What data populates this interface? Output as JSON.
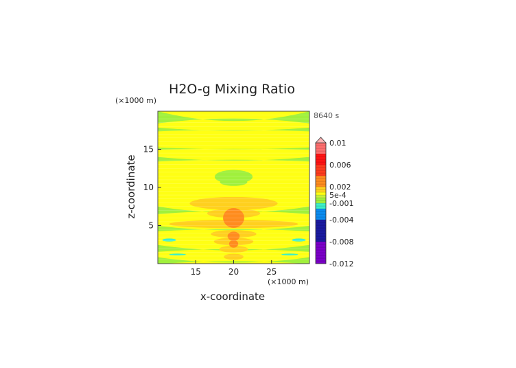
{
  "chart_data": {
    "type": "heatmap",
    "title": "H2O-g Mixing Ratio",
    "xlabel": "x-coordinate",
    "ylabel": "z-coordinate",
    "x_unit": "(×1000 m)",
    "y_unit": "(×1000 m)",
    "time_label": "8640 s",
    "xlim": [
      10,
      30
    ],
    "ylim": [
      0,
      20
    ],
    "x_ticks": [
      15,
      20,
      25
    ],
    "y_ticks": [
      5,
      10,
      15
    ],
    "colorbar": {
      "range": [
        -0.012,
        0.01
      ],
      "tick_labels": [
        "0.01",
        "0.006",
        "0.002",
        "5e-4",
        "-0.001",
        "-0.004",
        "-0.008",
        "-0.012"
      ],
      "tick_values": [
        0.01,
        0.006,
        0.002,
        0.0005,
        -0.001,
        -0.004,
        -0.008,
        -0.012
      ],
      "colors": [
        {
          "value": -0.012,
          "color": "#7b00c8"
        },
        {
          "value": -0.008,
          "color": "#1a1aa0"
        },
        {
          "value": -0.004,
          "color": "#0a8cf0"
        },
        {
          "value": -0.002,
          "color": "#3cf0c8"
        },
        {
          "value": -0.001,
          "color": "#a0f03c"
        },
        {
          "value": 0.0,
          "color": "#c8f03c"
        },
        {
          "value": 0.0005,
          "color": "#ffff14"
        },
        {
          "value": 0.001,
          "color": "#ffd01e"
        },
        {
          "value": 0.002,
          "color": "#ff8c1e"
        },
        {
          "value": 0.004,
          "color": "#ff3c1e"
        },
        {
          "value": 0.006,
          "color": "#ff1414"
        },
        {
          "value": 0.008,
          "color": "#ff6e6e"
        },
        {
          "value": 0.01,
          "color": "#ffb4b4"
        }
      ]
    },
    "background_value": 0.0006,
    "regions": [
      {
        "kind": "band",
        "z": 19.2,
        "half_height": 0.8,
        "value": -0.0008
      },
      {
        "kind": "band",
        "z": 17.6,
        "half_height": 0.25,
        "value": -0.0008
      },
      {
        "kind": "band",
        "z": 15.1,
        "half_height": 0.15,
        "value": -0.0008
      },
      {
        "kind": "band",
        "z": 13.7,
        "half_height": 0.3,
        "value": -0.0008
      },
      {
        "kind": "band",
        "z": 7.0,
        "half_height": 0.5,
        "value": -0.0008
      },
      {
        "kind": "band",
        "z": 4.6,
        "half_height": 0.35,
        "value": -0.0008
      },
      {
        "kind": "band",
        "z": 2.0,
        "half_height": 0.45,
        "value": -0.0008
      },
      {
        "kind": "band",
        "z": 0.4,
        "half_height": 0.45,
        "value": -0.0008
      },
      {
        "kind": "blob",
        "x": 20,
        "z": 11.4,
        "rx": 2.5,
        "rz": 0.9,
        "value": -0.0008
      },
      {
        "kind": "blob",
        "x": 20,
        "z": 10.7,
        "rx": 1.8,
        "rz": 0.5,
        "value": -0.0008
      },
      {
        "kind": "blob",
        "x": 20,
        "z": 7.9,
        "rx": 5.8,
        "rz": 0.85,
        "value": 0.0015
      },
      {
        "kind": "blob",
        "x": 20,
        "z": 6.6,
        "rx": 3.5,
        "rz": 0.6,
        "value": 0.0015
      },
      {
        "kind": "blob",
        "x": 20,
        "z": 5.2,
        "rx": 8.5,
        "rz": 0.55,
        "value": 0.0015
      },
      {
        "kind": "blob",
        "x": 20,
        "z": 3.9,
        "rx": 3.0,
        "rz": 0.5,
        "value": 0.0015
      },
      {
        "kind": "blob",
        "x": 20,
        "z": 2.9,
        "rx": 2.6,
        "rz": 0.5,
        "value": 0.0015
      },
      {
        "kind": "blob",
        "x": 20,
        "z": 1.9,
        "rx": 1.9,
        "rz": 0.45,
        "value": 0.0015
      },
      {
        "kind": "blob",
        "x": 20,
        "z": 0.9,
        "rx": 1.3,
        "rz": 0.4,
        "value": 0.0015
      },
      {
        "kind": "blob",
        "x": 20,
        "z": 6.0,
        "rx": 1.4,
        "rz": 1.3,
        "value": 0.0025
      },
      {
        "kind": "blob",
        "x": 20,
        "z": 3.6,
        "rx": 0.8,
        "rz": 0.6,
        "value": 0.0025
      },
      {
        "kind": "blob",
        "x": 20,
        "z": 2.6,
        "rx": 0.6,
        "rz": 0.5,
        "value": 0.0025
      },
      {
        "kind": "blob",
        "x": 11.5,
        "z": 3.1,
        "rx": 0.9,
        "rz": 0.2,
        "value": -0.002
      },
      {
        "kind": "blob",
        "x": 28.6,
        "z": 3.1,
        "rx": 0.9,
        "rz": 0.2,
        "value": -0.002
      },
      {
        "kind": "blob",
        "x": 12.6,
        "z": 1.2,
        "rx": 1.1,
        "rz": 0.12,
        "value": -0.002
      },
      {
        "kind": "blob",
        "x": 27.4,
        "z": 1.2,
        "rx": 1.1,
        "rz": 0.12,
        "value": -0.002
      }
    ]
  }
}
